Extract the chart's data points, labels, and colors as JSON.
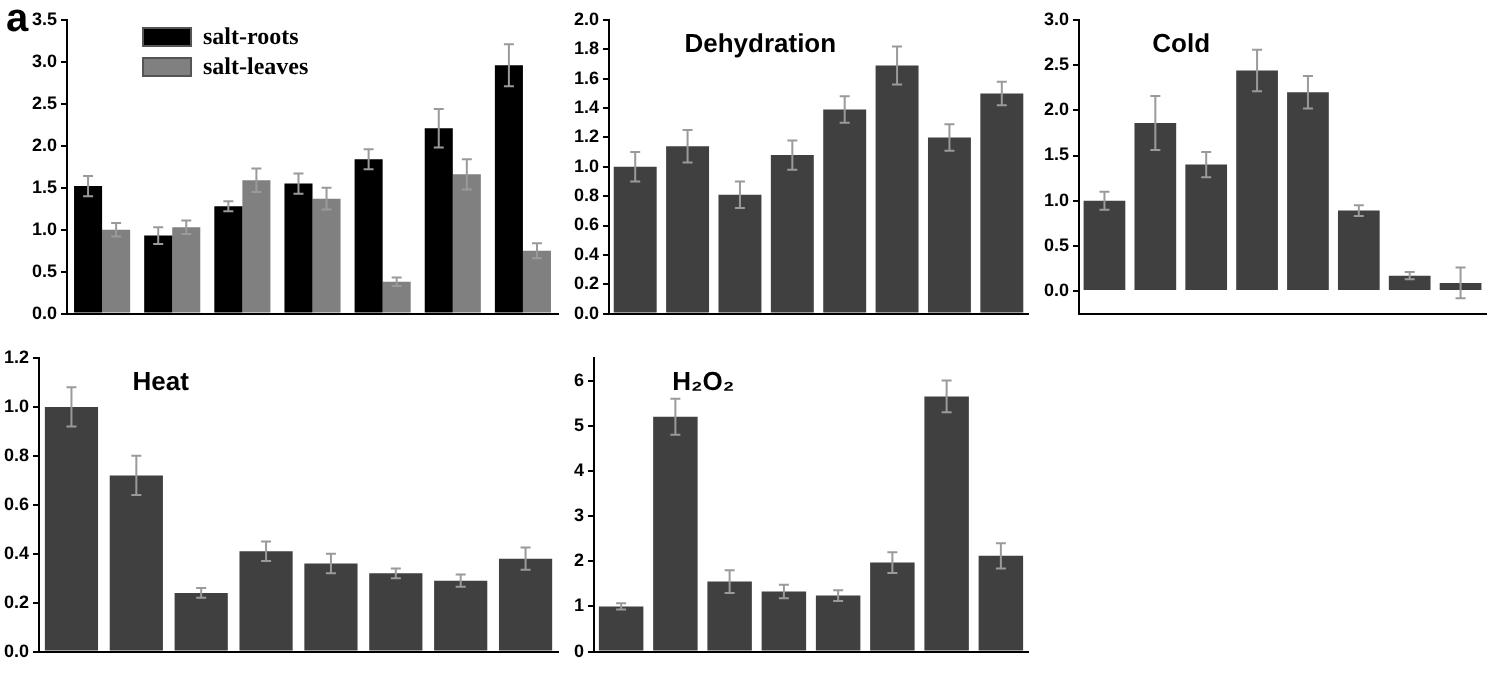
{
  "chart_data": [
    {
      "type": "bar",
      "annotations": [
        "a"
      ],
      "categories": [
        null,
        null,
        null,
        null,
        null,
        null,
        null
      ],
      "series": [
        {
          "name": "salt-roots",
          "color": "#000000",
          "values": [
            1.52,
            0.93,
            1.28,
            1.55,
            1.84,
            2.21,
            2.96
          ],
          "errors": [
            0.12,
            0.1,
            0.06,
            0.12,
            0.12,
            0.23,
            0.25
          ]
        },
        {
          "name": "salt-leaves",
          "color": "#808080",
          "values": [
            1.0,
            1.03,
            1.59,
            1.37,
            0.38,
            1.66,
            0.75
          ],
          "errors": [
            0.08,
            0.08,
            0.14,
            0.13,
            0.05,
            0.18,
            0.09
          ]
        }
      ],
      "ylim": [
        0,
        3.5
      ],
      "yticks": [
        {
          "value": 0,
          "label": "0.0"
        },
        {
          "value": 0.5,
          "label": "0.5"
        },
        {
          "value": 1,
          "label": "1.0"
        },
        {
          "value": 1.5,
          "label": "1.5"
        },
        {
          "value": 2,
          "label": "2.0"
        },
        {
          "value": 2.5,
          "label": "2.5"
        },
        {
          "value": 3,
          "label": "3.0"
        },
        {
          "value": 3.5,
          "label": "3.5"
        }
      ],
      "legend": "top left",
      "tick_labels": "y",
      "grid": false
    },
    {
      "type": "bar",
      "title": "Dehydration",
      "categories": [
        null,
        null,
        null,
        null,
        null,
        null,
        null,
        null
      ],
      "color": "#404040",
      "values": [
        1.0,
        1.14,
        0.81,
        1.08,
        1.39,
        1.69,
        1.2,
        1.5
      ],
      "errors": [
        0.1,
        0.11,
        0.09,
        0.1,
        0.09,
        0.13,
        0.09,
        0.08
      ],
      "ylim": [
        0,
        2.0
      ],
      "yticks": [
        {
          "value": 0,
          "label": "0.0"
        },
        {
          "value": 0.2,
          "label": "0.2"
        },
        {
          "value": 0.4,
          "label": "0.4"
        },
        {
          "value": 0.6,
          "label": "0.6"
        },
        {
          "value": 0.8,
          "label": "0.8"
        },
        {
          "value": 1,
          "label": "1.0"
        },
        {
          "value": 1.2,
          "label": "1.2"
        },
        {
          "value": 1.4,
          "label": "1.4"
        },
        {
          "value": 1.6,
          "label": "1.6"
        },
        {
          "value": 1.8,
          "label": "1.8"
        },
        {
          "value": 2,
          "label": "2.0"
        }
      ],
      "tick_labels": "y",
      "grid": false
    },
    {
      "type": "bar",
      "title": "Cold",
      "categories": [
        null,
        null,
        null,
        null,
        null,
        null,
        null,
        null
      ],
      "color": "#404040",
      "values": [
        1.0,
        1.86,
        1.4,
        2.44,
        2.2,
        0.89,
        0.17,
        0.09
      ],
      "errors": [
        0.1,
        0.3,
        0.14,
        0.23,
        0.18,
        0.06,
        0.04,
        0.17
      ],
      "ylim": [
        -0.25,
        3.0
      ],
      "yticks": [
        {
          "value": 0,
          "label": "0.0"
        },
        {
          "value": 0.5,
          "label": "0.5"
        },
        {
          "value": 1,
          "label": "1.0"
        },
        {
          "value": 1.5,
          "label": "1.5"
        },
        {
          "value": 2,
          "label": "2.0"
        },
        {
          "value": 2.5,
          "label": "2.5"
        },
        {
          "value": 3,
          "label": "3.0"
        }
      ],
      "tick_labels": "y",
      "grid": false
    },
    {
      "type": "bar",
      "title": "Heat",
      "categories": [
        null,
        null,
        null,
        null,
        null,
        null,
        null,
        null
      ],
      "color": "#404040",
      "values": [
        1.0,
        0.72,
        0.24,
        0.41,
        0.36,
        0.32,
        0.29,
        0.38
      ],
      "errors": [
        0.08,
        0.08,
        0.02,
        0.04,
        0.04,
        0.02,
        0.025,
        0.045
      ],
      "ylim": [
        0,
        1.2
      ],
      "yticks": [
        {
          "value": 0,
          "label": "0.0"
        },
        {
          "value": 0.2,
          "label": "0.2"
        },
        {
          "value": 0.4,
          "label": "0.4"
        },
        {
          "value": 0.6,
          "label": "0.6"
        },
        {
          "value": 0.8,
          "label": "0.8"
        },
        {
          "value": 1,
          "label": "1.0"
        },
        {
          "value": 1.2,
          "label": "1.2"
        }
      ],
      "tick_labels": "y",
      "grid": false
    },
    {
      "type": "bar",
      "title": "H₂O₂",
      "categories": [
        null,
        null,
        null,
        null,
        null,
        null,
        null,
        null
      ],
      "color": "#404040",
      "values": [
        1.0,
        5.2,
        1.55,
        1.33,
        1.24,
        1.97,
        5.65,
        2.12
      ],
      "errors": [
        0.07,
        0.4,
        0.25,
        0.15,
        0.12,
        0.23,
        0.35,
        0.28
      ],
      "ylim": [
        0,
        6.5
      ],
      "yticks": [
        0,
        1,
        2,
        3,
        4,
        5,
        6
      ],
      "tick_labels": "y",
      "grid": false
    }
  ]
}
